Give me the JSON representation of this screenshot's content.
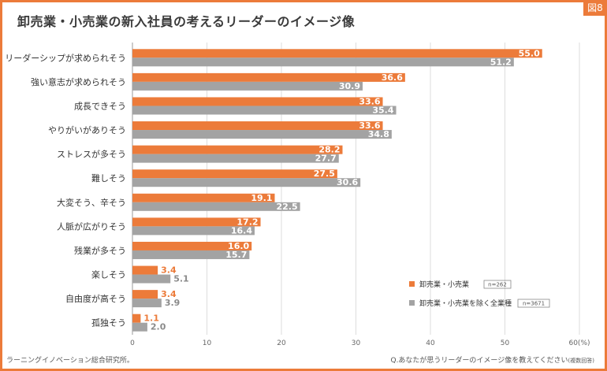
{
  "figure_tag": "図8",
  "title": "卸売業・小売業の新入社員の考えるリーダーのイメージ像",
  "source": "ラーニングイノベーション総合研究所。",
  "question": {
    "main": "Q.あなたが思うリーダーのイメージ像を教えてください",
    "note": "(複数回答)"
  },
  "colors": {
    "accent": "#ec7b3a",
    "series_1": "#ec7b3a",
    "series_2": "#a3a3a3",
    "label_1": "#ec7b3a",
    "label_2": "#8a8a8a"
  },
  "chart_data": {
    "type": "bar",
    "orientation": "horizontal",
    "title": "卸売業・小売業の新入社員の考えるリーダーのイメージ像",
    "categories": [
      "リーダーシップが求められそう",
      "強い意志が求められそう",
      "成長できそう",
      "やりがいがありそう",
      "ストレスが多そう",
      "難しそう",
      "大変そう、辛そう",
      "人脈が広がりそう",
      "残業が多そう",
      "楽しそう",
      "自由度が高そう",
      "孤独そう"
    ],
    "series": [
      {
        "name": "卸売業・小売業",
        "n": "n=262",
        "values": [
          55.0,
          36.6,
          33.6,
          33.6,
          28.2,
          27.5,
          19.1,
          17.2,
          16.0,
          3.4,
          3.4,
          1.1
        ]
      },
      {
        "name": "卸売業・小売業を除く全業種",
        "n": "n=3671",
        "values": [
          51.2,
          30.9,
          35.4,
          34.8,
          27.7,
          30.6,
          22.5,
          16.4,
          15.7,
          5.1,
          3.9,
          2.0
        ]
      }
    ],
    "xlim": [
      0,
      60
    ],
    "xticks": [
      "0",
      "10",
      "20",
      "30",
      "40",
      "50",
      "60(%)"
    ],
    "grid": true,
    "legend_position": "bottom-right",
    "value_labels": true
  }
}
